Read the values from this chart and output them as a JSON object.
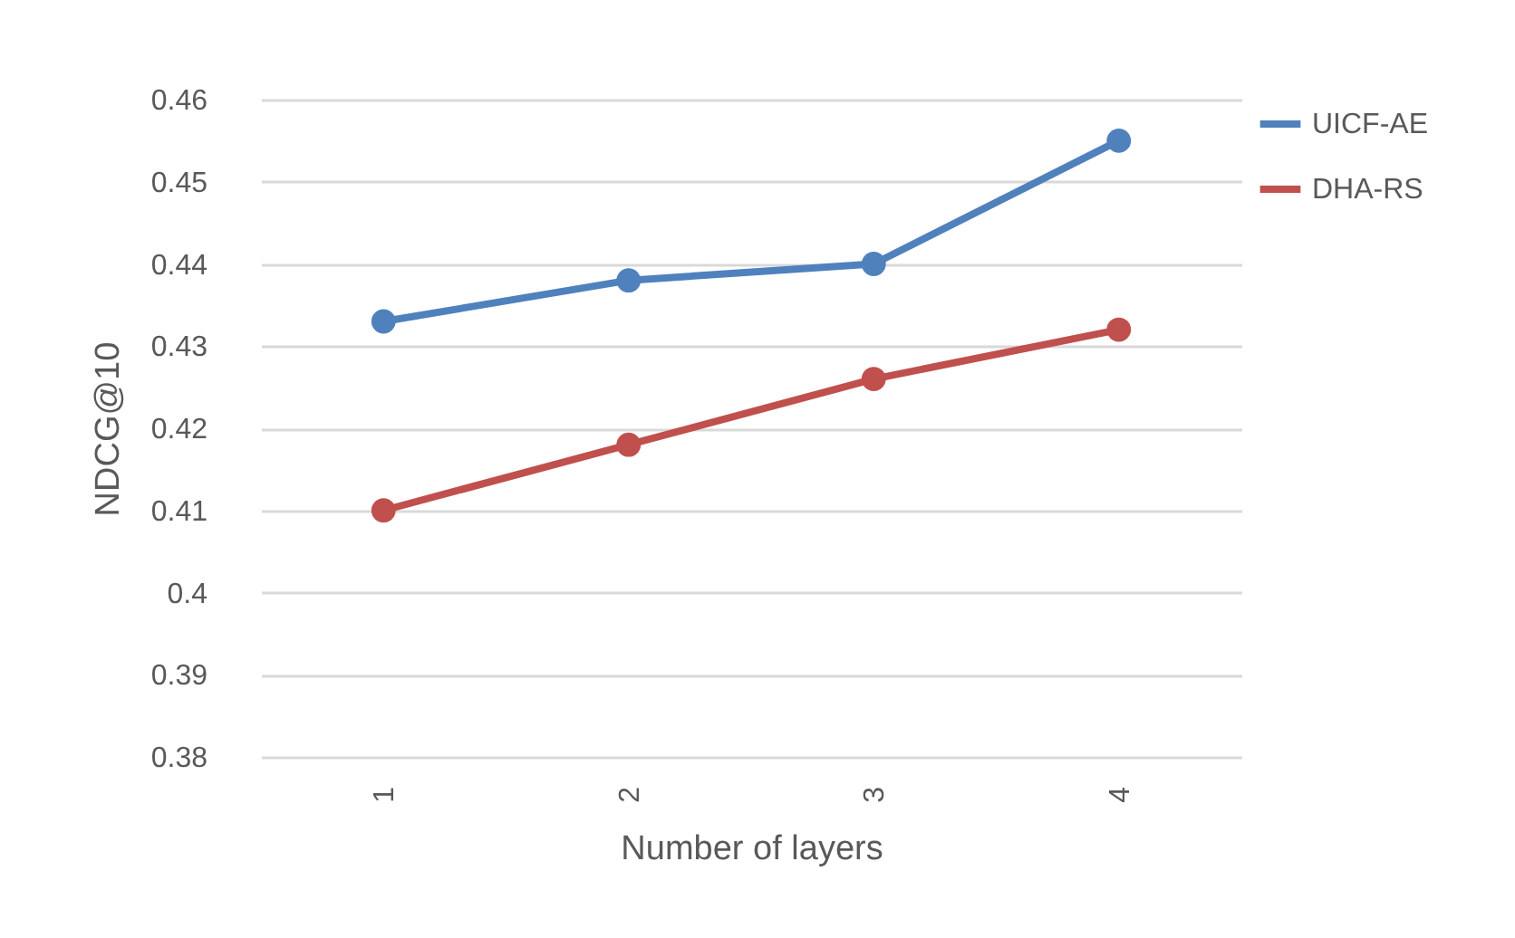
{
  "chart_data": {
    "type": "line",
    "xlabel": "Number of layers",
    "ylabel": "NDCG@10",
    "categories": [
      "1",
      "2",
      "3",
      "4"
    ],
    "series": [
      {
        "name": "UICF-AE",
        "color": "#4f81bd",
        "values": [
          0.433,
          0.438,
          0.44,
          0.455
        ]
      },
      {
        "name": "DHA-RS",
        "color": "#c0504d",
        "values": [
          0.41,
          0.418,
          0.426,
          0.432
        ]
      }
    ],
    "ylim": [
      0.38,
      0.46
    ],
    "yticks": [
      0.38,
      0.39,
      0.4,
      0.41,
      0.42,
      0.43,
      0.44,
      0.45,
      0.46
    ],
    "grid": "y",
    "legend": "right",
    "marker": "circle",
    "line_style": "solid"
  }
}
